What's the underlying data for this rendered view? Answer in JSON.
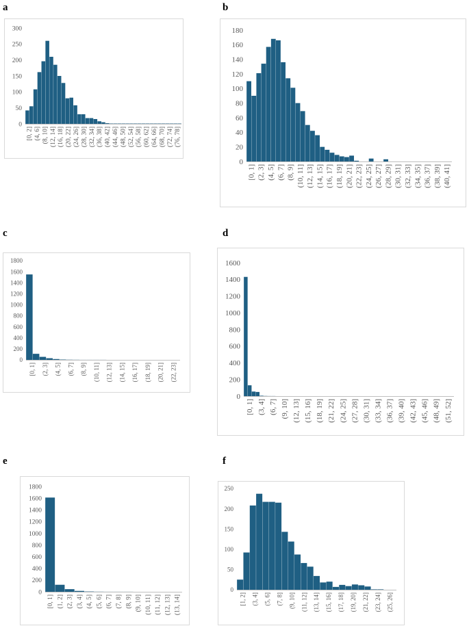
{
  "panels": [
    {
      "letter": "a"
    },
    {
      "letter": "b"
    },
    {
      "letter": "c"
    },
    {
      "letter": "d"
    },
    {
      "letter": "e"
    },
    {
      "letter": "f"
    }
  ],
  "colors": {
    "bar": "#1f5f83",
    "axis": "#bfbfbf",
    "tick_text": "#595959"
  },
  "chart_data": [
    {
      "type": "bar",
      "panel": "a",
      "ylim": [
        0,
        300
      ],
      "yticks": [
        0,
        50,
        100,
        150,
        200,
        250,
        300
      ],
      "tick_labels": [
        "[0, 2]",
        "(4, 6]",
        "(8, 10]",
        "(12, 14]",
        "(16, 18]",
        "(20, 22]",
        "(24, 26]",
        "(28, 30]",
        "(32, 34]",
        "(36, 38]",
        "(40, 42]",
        "(44, 46]",
        "(48, 50]",
        "(52, 54]",
        "(56, 58]",
        "(60, 62]",
        "(64, 66]",
        "(68, 70]",
        "(72, 74]",
        "(76, 78]"
      ],
      "values": [
        42,
        55,
        108,
        162,
        196,
        260,
        210,
        185,
        150,
        128,
        80,
        82,
        58,
        30,
        30,
        18,
        18,
        15,
        8,
        5,
        2,
        1,
        1,
        1,
        1,
        1,
        1,
        1,
        1,
        1,
        1,
        1,
        1,
        1,
        1,
        1,
        1,
        1,
        1
      ]
    },
    {
      "type": "bar",
      "panel": "b",
      "ylim": [
        0,
        180
      ],
      "yticks": [
        0,
        20,
        40,
        60,
        80,
        100,
        120,
        140,
        160,
        180
      ],
      "tick_labels": [
        "[0, 1]",
        "(2, 3]",
        "(4, 5]",
        "(6, 7]",
        "(8, 9]",
        "(10, 11]",
        "(12, 13]",
        "(14, 15]",
        "(16, 17]",
        "(18, 19]",
        "(20, 21]",
        "(22, 23]",
        "(24, 25]",
        "(26, 27]",
        "(28, 29]",
        "(30, 31]",
        "(32, 33]",
        "(34, 35]",
        "(36, 37]",
        "(38, 39]",
        "(40, 41]"
      ],
      "values": [
        110,
        90,
        121,
        134,
        157,
        168,
        166,
        136,
        114,
        101,
        80,
        69,
        50,
        42,
        36,
        20,
        16,
        12,
        9,
        7,
        6,
        8,
        1,
        0,
        0,
        4,
        0,
        0,
        3,
        0,
        0,
        0,
        0,
        0,
        0,
        0,
        0,
        0,
        0,
        0,
        0,
        0
      ]
    },
    {
      "type": "bar",
      "panel": "c",
      "ylim": [
        0,
        1800
      ],
      "yticks": [
        0,
        200,
        400,
        600,
        800,
        1000,
        1200,
        1400,
        1600,
        1800
      ],
      "tick_labels": [
        "[0, 1]",
        "(2, 3]",
        "(4, 5]",
        "(6, 7]",
        "(8, 9]",
        "(10, 11]",
        "(12, 13]",
        "(14, 15]",
        "(16, 17]",
        "(18, 19]",
        "(20, 21]",
        "(22, 23]"
      ],
      "values": [
        1550,
        110,
        55,
        30,
        15,
        6,
        3,
        2,
        1,
        1,
        1,
        1,
        0,
        0,
        0,
        0,
        0,
        0,
        0,
        0,
        0,
        0,
        0
      ]
    },
    {
      "type": "bar",
      "panel": "d",
      "ylim": [
        0,
        1600
      ],
      "yticks": [
        0,
        200,
        400,
        600,
        800,
        1000,
        1200,
        1400,
        1600
      ],
      "tick_labels": [
        "[0, 1]",
        "(3, 4]",
        "(6, 7]",
        "(9, 10]",
        "(12, 13]",
        "(15, 16]",
        "(18, 19]",
        "(21, 22]",
        "(24, 25]",
        "(27, 28]",
        "(30, 31]",
        "(33, 34]",
        "(36, 37]",
        "(39, 40]",
        "(42, 43]",
        "(45, 46]",
        "(48, 49]",
        "(51, 52]"
      ],
      "values": [
        1430,
        130,
        55,
        50,
        5,
        2,
        1,
        1,
        0,
        0,
        0,
        0,
        0,
        0,
        0,
        0,
        0,
        0,
        0,
        0,
        0,
        0,
        0,
        0,
        0,
        0,
        0,
        0,
        0,
        0,
        0,
        0,
        0,
        0,
        0,
        0,
        0,
        0,
        0,
        0,
        0,
        0,
        0,
        0,
        0,
        0,
        0,
        0,
        0,
        0,
        0,
        0,
        0
      ]
    },
    {
      "type": "bar",
      "panel": "e",
      "ylim": [
        0,
        1800
      ],
      "yticks": [
        0,
        200,
        400,
        600,
        800,
        1000,
        1200,
        1400,
        1600,
        1800
      ],
      "tick_labels": [
        "[0, 1]",
        "(1, 2]",
        "(2, 3]",
        "(3, 4]",
        "(4, 5]",
        "(5, 6]",
        "(6, 7]",
        "(7, 8]",
        "(8, 9]",
        "(9, 10]",
        "(10, 11]",
        "(11, 12]",
        "(12, 13]",
        "(13, 14]"
      ],
      "values": [
        1610,
        120,
        45,
        15,
        5,
        2,
        1,
        1,
        1,
        0,
        0,
        0,
        0,
        0
      ]
    },
    {
      "type": "bar",
      "panel": "f",
      "ylim": [
        0,
        250
      ],
      "yticks": [
        0,
        50,
        100,
        150,
        200,
        250
      ],
      "tick_labels": [
        "[1, 2]",
        "(3, 4]",
        "(5, 6]",
        "(7, 8]",
        "(9, 10]",
        "(11, 12]",
        "(13, 14]",
        "(15, 16]",
        "(17, 18]",
        "(19, 20]",
        "(21, 22]",
        "(23, 24]",
        "(25, 26]"
      ],
      "values": [
        25,
        92,
        208,
        237,
        217,
        217,
        215,
        143,
        119,
        87,
        66,
        57,
        34,
        18,
        20,
        7,
        12,
        9,
        13,
        11,
        8,
        1,
        1,
        0,
        0
      ]
    }
  ]
}
